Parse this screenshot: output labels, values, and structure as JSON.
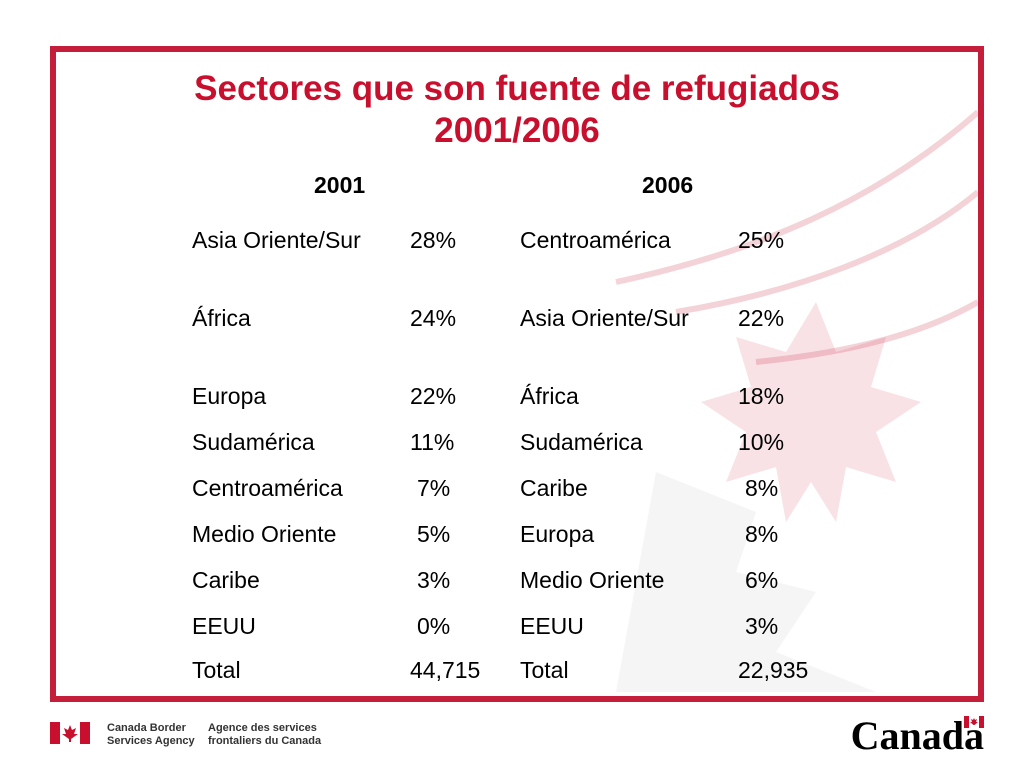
{
  "title": {
    "line1": "Sectores que son fuente de refugiados",
    "line2": "2001/2006"
  },
  "columns": {
    "left_year": "2001",
    "right_year": "2006"
  },
  "rows": [
    {
      "left_region": "Asia Oriente/Sur",
      "left_pct": "28%",
      "right_region": "Centroamérica",
      "right_pct": "25%"
    },
    {
      "left_region": "África",
      "left_pct": "24%",
      "right_region": "Asia Oriente/Sur",
      "right_pct": "22%"
    },
    {
      "left_region": "Europa",
      "left_pct": "22%",
      "right_region": "África",
      "right_pct": "18%"
    },
    {
      "left_region": "Sudamérica",
      "left_pct": "11%",
      "right_region": "Sudamérica",
      "right_pct": "10%"
    },
    {
      "left_region": "Centroamérica",
      "left_pct": "7%",
      "right_region": "Caribe",
      "right_pct": "8%"
    },
    {
      "left_region": "Medio Oriente",
      "left_pct": "5%",
      "right_region": "Europa",
      "right_pct": "8%"
    },
    {
      "left_region": "Caribe",
      "left_pct": "3%",
      "right_region": "Medio Oriente",
      "right_pct": "6%"
    },
    {
      "left_region": "EEUU",
      "left_pct": "0%",
      "right_region": "EEUU",
      "right_pct": "3%"
    },
    {
      "left_region": "Total",
      "left_pct": "44,715",
      "right_region": "Total",
      "right_pct": "22,935"
    }
  ],
  "footer": {
    "agency_en_1": "Canada Border",
    "agency_en_2": "Services Agency",
    "agency_fr_1": "Agence des services",
    "agency_fr_2": "frontaliers du Canada",
    "wordmark": "Canada"
  },
  "colors": {
    "accent": "#c8102e",
    "border": "#c41e3a"
  }
}
